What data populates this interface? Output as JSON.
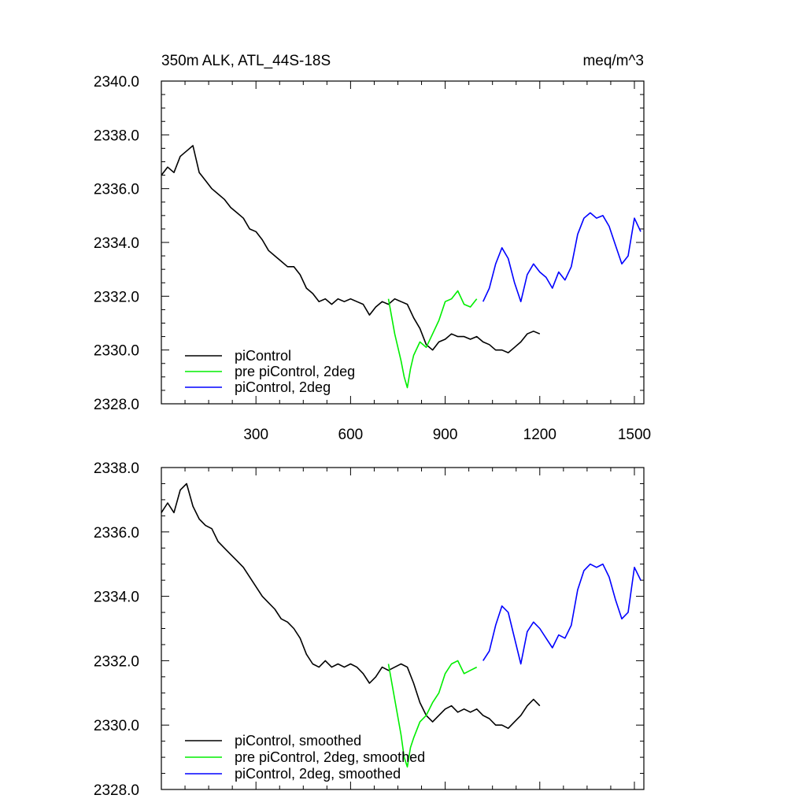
{
  "chart_data": [
    {
      "type": "line",
      "title": "350m ALK, ATL_44S-18S",
      "units": "meq/m^3",
      "xlim": [
        0,
        1530
      ],
      "ylim": [
        2328,
        2340
      ],
      "x_ticks": [
        300,
        600,
        900,
        1200,
        1500
      ],
      "y_ticks": [
        2328.0,
        2330.0,
        2332.0,
        2334.0,
        2336.0,
        2338.0,
        2340.0
      ],
      "legend_position": "bottom-left",
      "series": [
        {
          "name": "piControl",
          "color": "#000000",
          "x": [
            0,
            20,
            40,
            60,
            80,
            100,
            120,
            140,
            160,
            180,
            200,
            220,
            240,
            260,
            280,
            300,
            320,
            340,
            360,
            380,
            400,
            420,
            440,
            460,
            480,
            500,
            520,
            540,
            560,
            580,
            600,
            620,
            640,
            660,
            680,
            700,
            720,
            740,
            760,
            780,
            800,
            820,
            840,
            860,
            880,
            900,
            920,
            940,
            960,
            980,
            1000,
            1020,
            1040,
            1060,
            1080,
            1100,
            1120,
            1140,
            1160,
            1180,
            1200
          ],
          "y": [
            2336.5,
            2336.8,
            2336.6,
            2337.2,
            2337.4,
            2337.6,
            2336.6,
            2336.3,
            2336.0,
            2335.8,
            2335.6,
            2335.3,
            2335.1,
            2334.9,
            2334.5,
            2334.4,
            2334.1,
            2333.7,
            2333.5,
            2333.3,
            2333.1,
            2333.1,
            2332.8,
            2332.3,
            2332.1,
            2331.8,
            2331.9,
            2331.7,
            2331.9,
            2331.8,
            2331.9,
            2331.8,
            2331.7,
            2331.3,
            2331.6,
            2331.8,
            2331.7,
            2331.9,
            2331.8,
            2331.7,
            2331.2,
            2330.8,
            2330.2,
            2330.0,
            2330.3,
            2330.4,
            2330.6,
            2330.5,
            2330.5,
            2330.4,
            2330.5,
            2330.3,
            2330.2,
            2330.0,
            2330.0,
            2329.9,
            2330.1,
            2330.3,
            2330.6,
            2330.7,
            2330.6
          ]
        },
        {
          "name": "pre piControl, 2deg",
          "color": "#00ee00",
          "x": [
            720,
            740,
            760,
            770,
            780,
            790,
            800,
            820,
            840,
            860,
            880,
            900,
            920,
            940,
            960,
            980,
            1000
          ],
          "y": [
            2331.9,
            2330.6,
            2329.6,
            2329.0,
            2328.6,
            2329.3,
            2329.8,
            2330.3,
            2330.1,
            2330.6,
            2331.1,
            2331.8,
            2331.9,
            2332.2,
            2331.7,
            2331.6,
            2331.9
          ]
        },
        {
          "name": "piControl, 2deg",
          "color": "#0000ff",
          "x": [
            1020,
            1040,
            1060,
            1080,
            1100,
            1120,
            1140,
            1160,
            1180,
            1200,
            1220,
            1240,
            1260,
            1280,
            1300,
            1320,
            1340,
            1360,
            1380,
            1400,
            1420,
            1440,
            1460,
            1480,
            1500,
            1520
          ],
          "y": [
            2331.8,
            2332.3,
            2333.2,
            2333.8,
            2333.4,
            2332.5,
            2331.8,
            2332.8,
            2333.2,
            2332.9,
            2332.7,
            2332.3,
            2332.9,
            2332.6,
            2333.1,
            2334.3,
            2334.9,
            2335.1,
            2334.9,
            2335.0,
            2334.6,
            2333.9,
            2333.2,
            2333.5,
            2334.9,
            2334.4
          ]
        }
      ]
    },
    {
      "type": "line",
      "title": "",
      "xlim": [
        0,
        1530
      ],
      "ylim": [
        2328,
        2338
      ],
      "x_ticks": [
        300,
        600,
        900,
        1200,
        1500
      ],
      "x_tick_labels_shown": false,
      "y_ticks": [
        2328.0,
        2330.0,
        2332.0,
        2334.0,
        2336.0,
        2338.0
      ],
      "legend_position": "bottom-left",
      "series": [
        {
          "name": "piControl, smoothed",
          "color": "#000000",
          "x": [
            0,
            20,
            40,
            60,
            80,
            100,
            120,
            140,
            160,
            180,
            200,
            220,
            240,
            260,
            280,
            300,
            320,
            340,
            360,
            380,
            400,
            420,
            440,
            460,
            480,
            500,
            520,
            540,
            560,
            580,
            600,
            620,
            640,
            660,
            680,
            700,
            720,
            740,
            760,
            780,
            800,
            820,
            840,
            860,
            880,
            900,
            920,
            940,
            960,
            980,
            1000,
            1020,
            1040,
            1060,
            1080,
            1100,
            1120,
            1140,
            1160,
            1180,
            1200
          ],
          "y": [
            2336.6,
            2336.9,
            2336.6,
            2337.3,
            2337.5,
            2336.8,
            2336.4,
            2336.2,
            2336.1,
            2335.7,
            2335.5,
            2335.3,
            2335.1,
            2334.9,
            2334.6,
            2334.3,
            2334.0,
            2333.8,
            2333.6,
            2333.3,
            2333.2,
            2333.0,
            2332.7,
            2332.2,
            2331.9,
            2331.8,
            2332.0,
            2331.8,
            2331.9,
            2331.8,
            2331.9,
            2331.8,
            2331.6,
            2331.3,
            2331.5,
            2331.8,
            2331.7,
            2331.8,
            2331.9,
            2331.8,
            2331.3,
            2330.7,
            2330.3,
            2330.1,
            2330.3,
            2330.5,
            2330.6,
            2330.4,
            2330.5,
            2330.4,
            2330.5,
            2330.3,
            2330.2,
            2330.0,
            2330.0,
            2329.9,
            2330.1,
            2330.3,
            2330.6,
            2330.8,
            2330.6
          ]
        },
        {
          "name": "pre piControl, 2deg, smoothed",
          "color": "#00ee00",
          "x": [
            720,
            740,
            760,
            770,
            780,
            790,
            800,
            820,
            840,
            860,
            880,
            900,
            920,
            940,
            960,
            980,
            1000
          ],
          "y": [
            2331.9,
            2330.8,
            2329.7,
            2329.0,
            2328.7,
            2329.3,
            2329.6,
            2330.1,
            2330.3,
            2330.7,
            2331.0,
            2331.6,
            2331.9,
            2332.0,
            2331.6,
            2331.7,
            2331.8
          ]
        },
        {
          "name": "piControl, 2deg, smoothed",
          "color": "#0000ff",
          "x": [
            1020,
            1040,
            1060,
            1080,
            1100,
            1120,
            1140,
            1160,
            1180,
            1200,
            1220,
            1240,
            1260,
            1280,
            1300,
            1320,
            1340,
            1360,
            1380,
            1400,
            1420,
            1440,
            1460,
            1480,
            1500,
            1520
          ],
          "y": [
            2332.0,
            2332.3,
            2333.1,
            2333.7,
            2333.5,
            2332.7,
            2331.9,
            2332.9,
            2333.2,
            2333.0,
            2332.7,
            2332.4,
            2332.8,
            2332.7,
            2333.1,
            2334.2,
            2334.8,
            2335.0,
            2334.9,
            2335.0,
            2334.6,
            2333.9,
            2333.3,
            2333.5,
            2334.9,
            2334.5
          ]
        }
      ]
    }
  ]
}
